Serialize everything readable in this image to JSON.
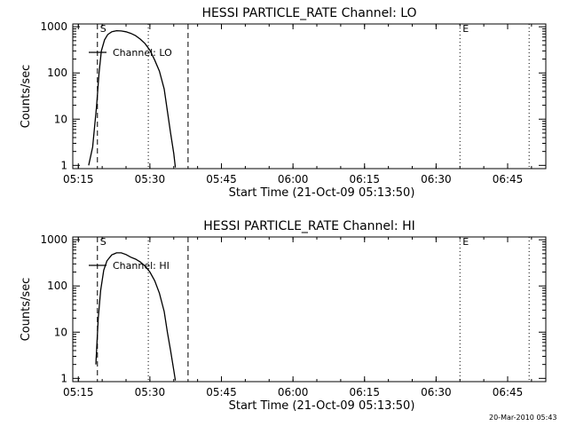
{
  "footer_stamp": "20-Mar-2010 05:43",
  "chart_data": [
    {
      "type": "line",
      "title": "HESSI PARTICLE_RATE Channel: LO",
      "xlabel": "Start Time (21-Oct-09 05:13:50)",
      "ylabel": "Counts/sec",
      "yscale": "log",
      "xlim": [
        "05:13:50",
        "06:53:00"
      ],
      "ylim": [
        0.85,
        1150
      ],
      "x_ticks": [
        "05:15",
        "05:30",
        "05:45",
        "06:00",
        "06:15",
        "06:30",
        "06:45"
      ],
      "y_ticks": [
        "1",
        "10",
        "100",
        "1000"
      ],
      "legend": "Channel: LO",
      "legend_position": "top-left",
      "markers": [
        {
          "label": "S",
          "time": "05:19:00",
          "style": "dashed"
        },
        {
          "label": "",
          "time": "05:29:40",
          "style": "dotted"
        },
        {
          "label": "",
          "time": "05:38:00",
          "style": "dashed"
        },
        {
          "label": "E",
          "time": "06:35:00",
          "style": "dotted"
        },
        {
          "label": "",
          "time": "06:49:30",
          "style": "dotted"
        }
      ],
      "series": [
        {
          "x": [
            "05:17:10",
            "05:18:00",
            "05:18:50",
            "05:19:20",
            "05:19:50",
            "05:20:30",
            "05:21:10",
            "05:22:00",
            "05:23:00",
            "05:24:00",
            "05:25:00",
            "05:26:00",
            "05:27:00",
            "05:28:00",
            "05:29:00",
            "05:30:00",
            "05:31:00",
            "05:32:00",
            "05:33:00",
            "05:33:40",
            "05:34:20",
            "05:35:00",
            "05:35:20"
          ],
          "y": [
            1,
            2.5,
            20,
            100,
            300,
            520,
            680,
            780,
            820,
            810,
            780,
            720,
            640,
            540,
            430,
            310,
            190,
            110,
            45,
            15,
            5,
            1.8,
            0.9
          ]
        }
      ]
    },
    {
      "type": "line",
      "title": "HESSI PARTICLE_RATE Channel: HI",
      "xlabel": "Start Time (21-Oct-09 05:13:50)",
      "ylabel": "Counts/sec",
      "yscale": "log",
      "xlim": [
        "05:13:50",
        "06:53:00"
      ],
      "ylim": [
        0.85,
        1150
      ],
      "x_ticks": [
        "05:15",
        "05:30",
        "05:45",
        "06:00",
        "06:15",
        "06:30",
        "06:45"
      ],
      "y_ticks": [
        "1",
        "10",
        "100",
        "1000"
      ],
      "legend": "Channel: HI",
      "legend_position": "top-left",
      "markers": [
        {
          "label": "S",
          "time": "05:19:00",
          "style": "dashed"
        },
        {
          "label": "",
          "time": "05:29:40",
          "style": "dotted"
        },
        {
          "label": "",
          "time": "05:38:00",
          "style": "dashed"
        },
        {
          "label": "E",
          "time": "06:35:00",
          "style": "dotted"
        },
        {
          "label": "",
          "time": "06:49:30",
          "style": "dotted"
        }
      ],
      "series": [
        {
          "x": [
            "05:18:40",
            "05:19:10",
            "05:19:40",
            "05:20:20",
            "05:21:00",
            "05:22:00",
            "05:23:00",
            "05:24:00",
            "05:25:00",
            "05:26:00",
            "05:27:00",
            "05:28:00",
            "05:29:00",
            "05:30:00",
            "05:31:00",
            "05:32:00",
            "05:33:00",
            "05:33:40",
            "05:34:20",
            "05:35:00",
            "05:35:20"
          ],
          "y": [
            2,
            20,
            80,
            220,
            350,
            470,
            520,
            520,
            480,
            420,
            380,
            330,
            270,
            200,
            130,
            70,
            28,
            10,
            4,
            1.5,
            0.9
          ]
        }
      ]
    }
  ]
}
